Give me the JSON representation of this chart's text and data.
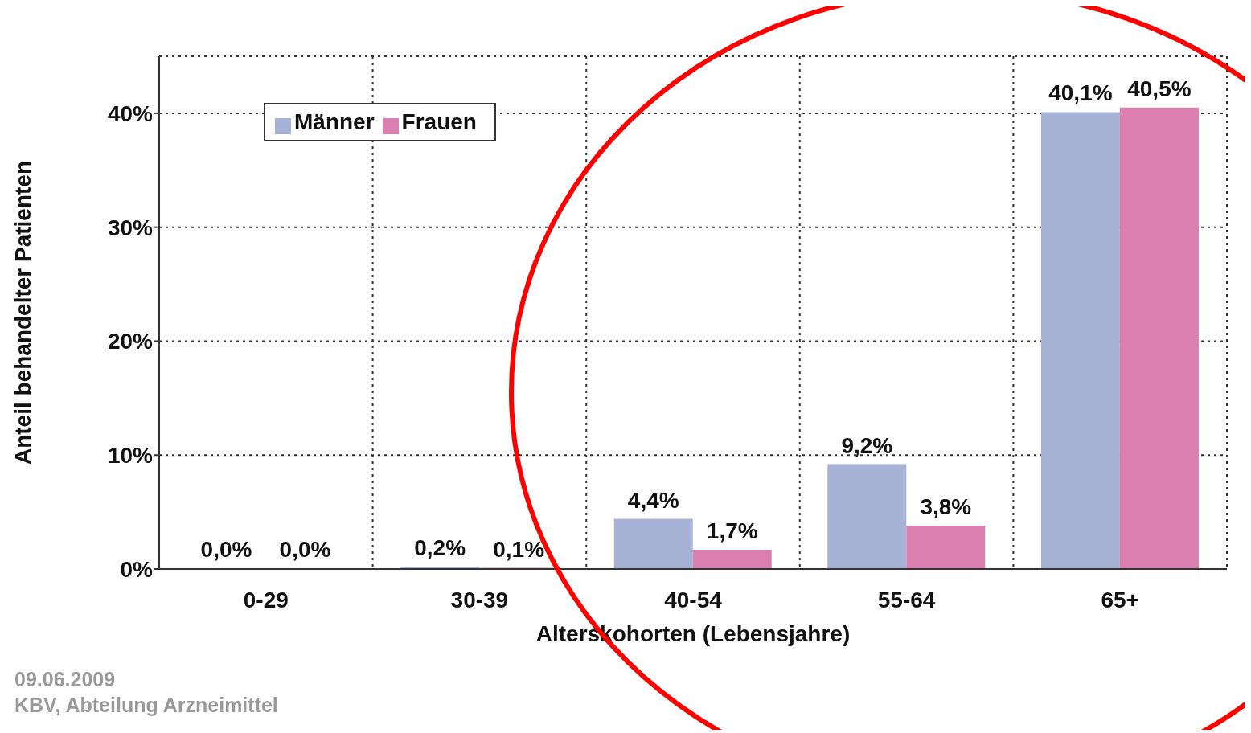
{
  "chart_data": {
    "type": "bar",
    "xlabel": "Alterskohorten (Lebensjahre)",
    "ylabel": "Anteil behandelter Patienten",
    "categories": [
      "0-29",
      "30-39",
      "40-54",
      "55-64",
      "65+"
    ],
    "series": [
      {
        "name": "Männer",
        "color": "#a7b3d6",
        "values": [
          0.0,
          0.2,
          4.4,
          9.2,
          40.1
        ],
        "value_labels": [
          "0,0%",
          "0,2%",
          "4,4%",
          "9,2%",
          "40,1%"
        ]
      },
      {
        "name": "Frauen",
        "color": "#db7fb0",
        "values": [
          0.0,
          0.1,
          1.7,
          3.8,
          40.5
        ],
        "value_labels": [
          "0,0%",
          "0,1%",
          "1,7%",
          "3,8%",
          "40,5%"
        ]
      }
    ],
    "ylim": [
      0,
      45
    ],
    "yticks": [
      {
        "value": 0,
        "label": "0%"
      },
      {
        "value": 10,
        "label": "10%"
      },
      {
        "value": 20,
        "label": "20%"
      },
      {
        "value": 30,
        "label": "30%"
      },
      {
        "value": 40,
        "label": "40%"
      }
    ],
    "grid": true,
    "legend": "top left",
    "annotations": [
      "09.06.2009",
      "KBV, Abteilung Arzneimittel"
    ]
  }
}
